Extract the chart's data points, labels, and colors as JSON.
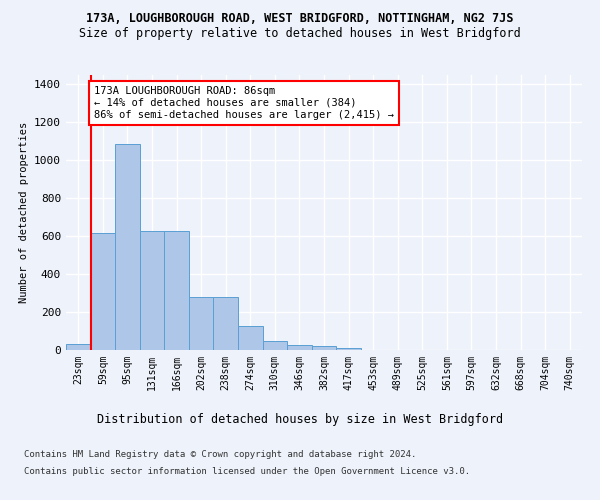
{
  "title_main": "173A, LOUGHBOROUGH ROAD, WEST BRIDGFORD, NOTTINGHAM, NG2 7JS",
  "title_sub": "Size of property relative to detached houses in West Bridgford",
  "xlabel": "Distribution of detached houses by size in West Bridgford",
  "ylabel": "Number of detached properties",
  "footer1": "Contains HM Land Registry data © Crown copyright and database right 2024.",
  "footer2": "Contains public sector information licensed under the Open Government Licence v3.0.",
  "bin_labels": [
    "23sqm",
    "59sqm",
    "95sqm",
    "131sqm",
    "166sqm",
    "202sqm",
    "238sqm",
    "274sqm",
    "310sqm",
    "346sqm",
    "382sqm",
    "417sqm",
    "453sqm",
    "489sqm",
    "525sqm",
    "561sqm",
    "597sqm",
    "632sqm",
    "668sqm",
    "704sqm",
    "740sqm"
  ],
  "bar_values": [
    30,
    615,
    1085,
    630,
    630,
    280,
    280,
    125,
    45,
    25,
    20,
    12,
    0,
    0,
    0,
    0,
    0,
    0,
    0,
    0,
    0
  ],
  "bar_color": "#aec6e8",
  "bar_edge_color": "#5a9fd4",
  "vline_color": "red",
  "vline_pos": 0.5,
  "annotation_text": "173A LOUGHBOROUGH ROAD: 86sqm\n← 14% of detached houses are smaller (384)\n86% of semi-detached houses are larger (2,415) →",
  "ylim": [
    0,
    1450
  ],
  "yticks": [
    0,
    200,
    400,
    600,
    800,
    1000,
    1200,
    1400
  ],
  "background_color": "#eef2fb",
  "plot_bg_color": "#eef2fb",
  "grid_color": "#ffffff",
  "title_fontsize": 8.5,
  "subtitle_fontsize": 8.5,
  "xlabel_fontsize": 8.5,
  "ylabel_fontsize": 7.5,
  "tick_fontsize": 7,
  "annotation_fontsize": 7.5,
  "footer_fontsize": 6.5
}
